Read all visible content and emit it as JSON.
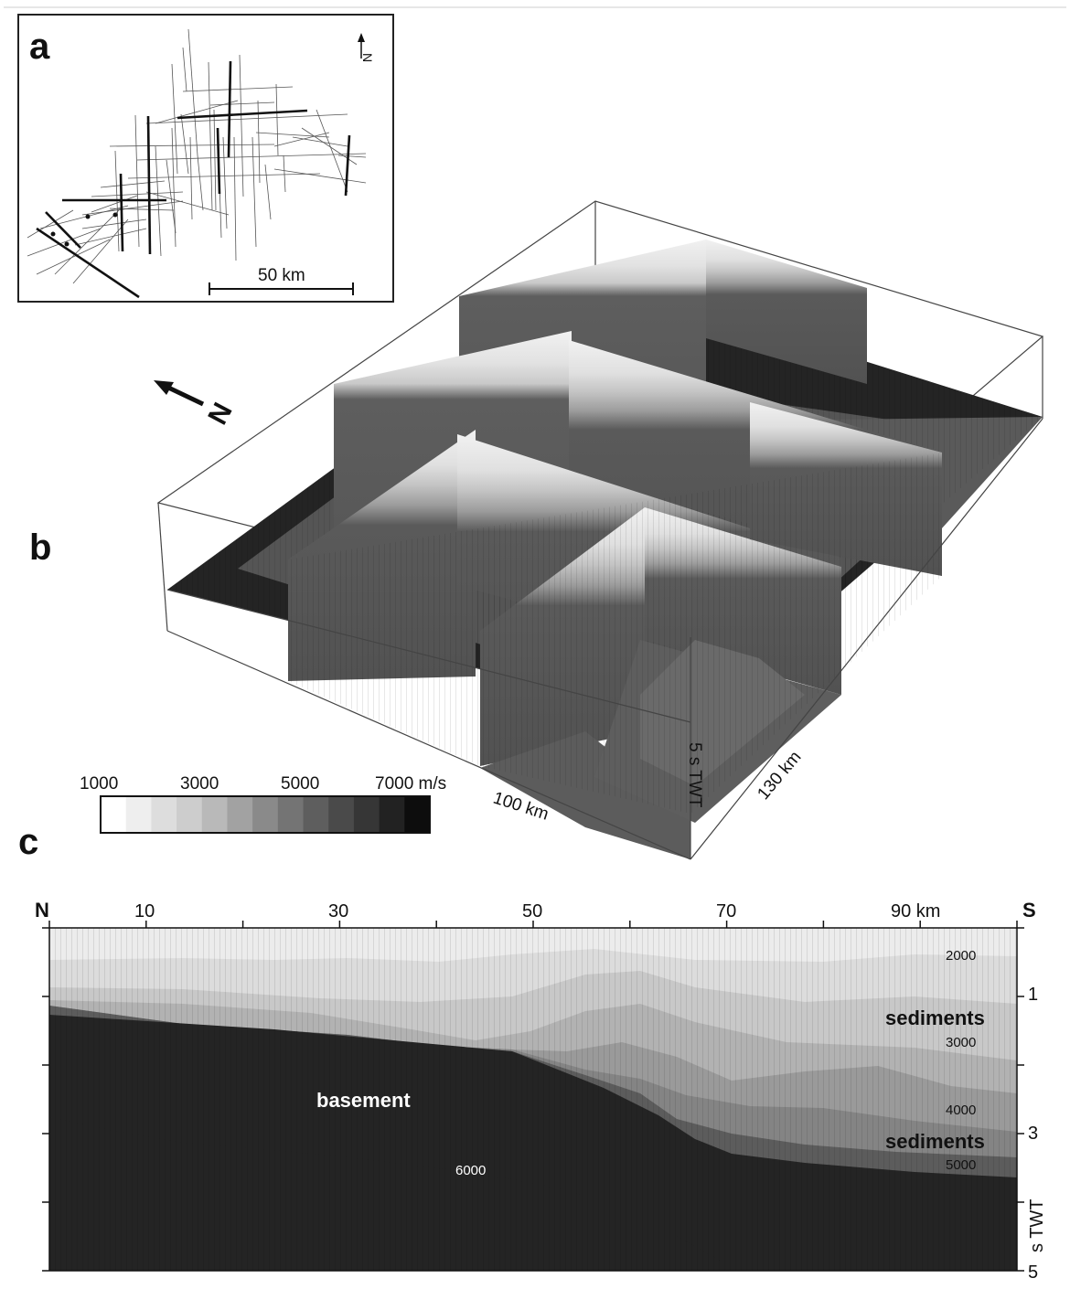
{
  "panel_a": {
    "letter": "a",
    "north_label": "N",
    "scale_label": "50 km"
  },
  "panel_b": {
    "letter": "b",
    "north_label": "N",
    "depth_label": "5 s TWT",
    "length_label": "100 km",
    "width_label": "130 km",
    "legend": {
      "tick_labels": [
        "1000",
        "3000",
        "5000",
        "7000 m/s"
      ],
      "colors": [
        "#ffffff",
        "#eeeeee",
        "#dddddd",
        "#cdcdcd",
        "#b9b9b9",
        "#a2a2a2",
        "#8a8a8a",
        "#747474",
        "#5e5e5e",
        "#4a4a4a",
        "#363636",
        "#222222",
        "#0d0d0d"
      ]
    }
  },
  "panel_c": {
    "letter": "c",
    "left_end_label": "N",
    "right_end_label": "S",
    "x_tick_labels": [
      "10",
      "30",
      "50",
      "70",
      "90 km"
    ],
    "y_tick_labels": [
      "1",
      "3",
      "5"
    ],
    "y_axis_label": "s TWT",
    "annotations": {
      "sediments_upper": "sediments",
      "sediments_lower": "sediments",
      "basement": "basement",
      "v2000": "2000",
      "v3000": "3000",
      "v4000": "4000",
      "v5000": "5000",
      "v6000": "6000"
    },
    "layer_colors": [
      "#ececec",
      "#dcdcdc",
      "#c8c8c8",
      "#b2b2b2",
      "#9a9a9a",
      "#848484",
      "#5c5c5c",
      "#242424"
    ]
  }
}
